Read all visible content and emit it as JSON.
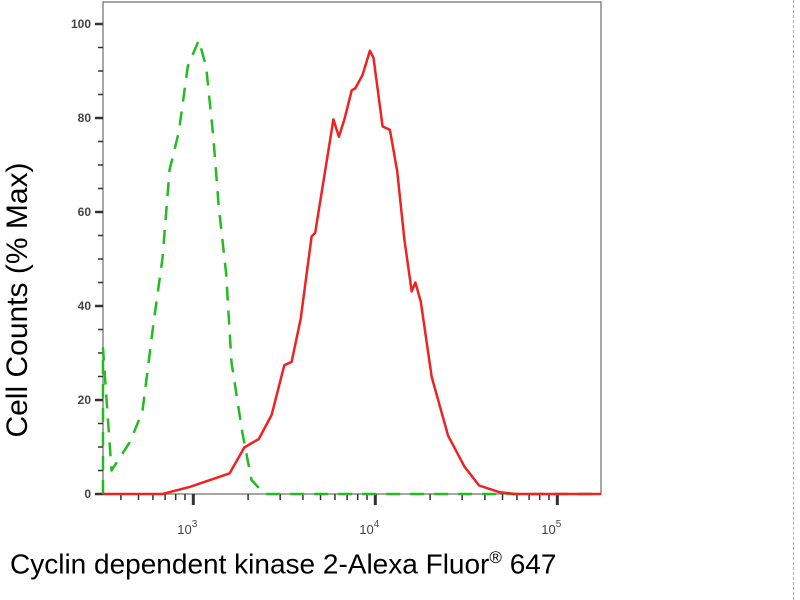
{
  "chart_data": {
    "type": "line",
    "title": "",
    "xlabel": "Cyclin dependent kinase 2-Alexa Fluor",
    "xlabel_superscript": "®",
    "xlabel_suffix": " 647",
    "ylabel": "Cell Counts (% Max)",
    "x_scale": "log",
    "xlim": [
      319,
      173780
    ],
    "ylim": [
      0,
      100
    ],
    "x_ticks": [
      {
        "base": "10",
        "exp": "3",
        "value": 1000
      },
      {
        "base": "10",
        "exp": "4",
        "value": 10000
      },
      {
        "base": "10",
        "exp": "5",
        "value": 100000
      }
    ],
    "y_ticks": [
      "0",
      "20",
      "40",
      "60",
      "80",
      "100"
    ],
    "y_tick_values": [
      0,
      20,
      40,
      60,
      80,
      100
    ],
    "grid": false,
    "series": [
      {
        "style": "dashed",
        "color": "#22bb22",
        "x": [
          319,
          319,
          355,
          447,
          525,
          603,
          676,
          741,
          832,
          933,
          1072,
          1175,
          1288,
          1380,
          1514,
          1622,
          1862,
          2089,
          2455,
          173780
        ],
        "y": [
          0,
          31,
          5,
          11,
          17.5,
          36,
          50,
          69,
          77,
          91,
          96.5,
          91,
          76,
          61,
          47,
          28,
          13,
          3,
          0,
          0
        ]
      },
      {
        "style": "solid",
        "color": "#ee2222",
        "x": [
          319,
          676,
          955,
          1585,
          1905,
          2291,
          2692,
          3162,
          3467,
          3890,
          4467,
          4677,
          5888,
          6310,
          6761,
          7413,
          7762,
          8511,
          9333,
          9772,
          10965,
          12023,
          13183,
          14454,
          15849,
          16596,
          17783,
          20417,
          25119,
          30903,
          37154,
          47863,
          58884,
          173780
        ],
        "y": [
          0,
          0,
          1.5,
          4.4,
          9.9,
          11.7,
          16.8,
          27.4,
          28.1,
          37.3,
          54.8,
          55.6,
          79.7,
          76,
          79.7,
          85.9,
          86.3,
          89.2,
          94.3,
          92.8,
          78.2,
          77.5,
          68.7,
          54.1,
          43.1,
          45,
          40.9,
          24.9,
          12.4,
          5.8,
          1.8,
          0.4,
          0,
          0
        ]
      }
    ]
  }
}
